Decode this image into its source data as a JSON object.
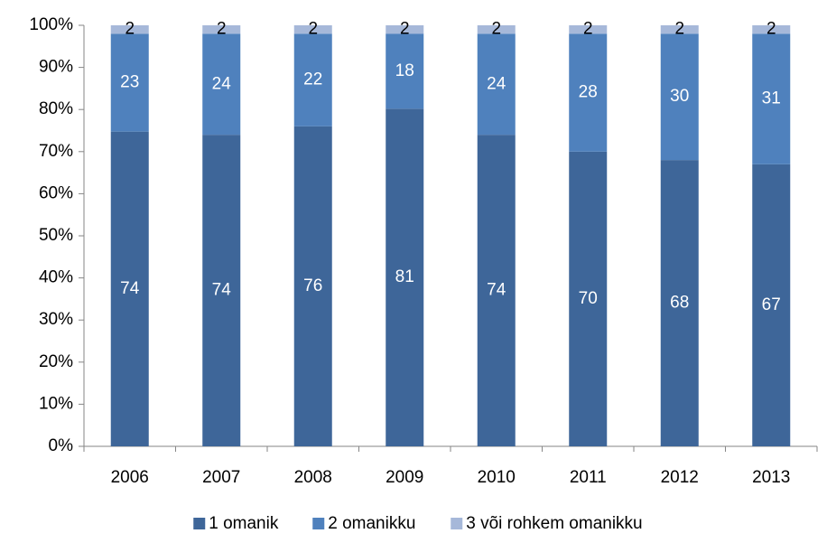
{
  "chart_data": {
    "type": "bar",
    "stacking": "percent",
    "categories": [
      "2006",
      "2007",
      "2008",
      "2009",
      "2010",
      "2011",
      "2012",
      "2013"
    ],
    "series": [
      {
        "name": "1 omanik",
        "color": "#3e6699",
        "label_color": "#ffffff",
        "values": [
          74,
          74,
          76,
          81,
          74,
          70,
          68,
          67
        ]
      },
      {
        "name": "2 omanikku",
        "color": "#4f81bd",
        "label_color": "#ffffff",
        "values": [
          23,
          24,
          22,
          18,
          24,
          28,
          30,
          31
        ]
      },
      {
        "name": "3 või rohkem omanikku",
        "color": "#a6b8d9",
        "label_color": "#000000",
        "values": [
          2,
          2,
          2,
          2,
          2,
          2,
          2,
          2
        ]
      }
    ],
    "ylim": [
      0,
      100
    ],
    "yticks": [
      {
        "value": 0,
        "label": "0%"
      },
      {
        "value": 10,
        "label": "10%"
      },
      {
        "value": 20,
        "label": "20%"
      },
      {
        "value": 30,
        "label": "30%"
      },
      {
        "value": 40,
        "label": "40%"
      },
      {
        "value": 50,
        "label": "50%"
      },
      {
        "value": 60,
        "label": "60%"
      },
      {
        "value": 70,
        "label": "70%"
      },
      {
        "value": 80,
        "label": "80%"
      },
      {
        "value": 90,
        "label": "90%"
      },
      {
        "value": 100,
        "label": "100%"
      }
    ],
    "grid": false,
    "legend": "bottom"
  }
}
